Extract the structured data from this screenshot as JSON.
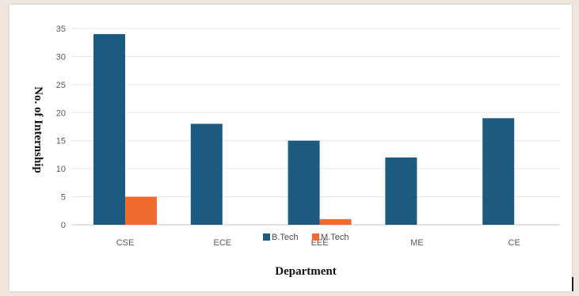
{
  "chart_data": {
    "type": "bar",
    "categories": [
      "CSE",
      "ECE",
      "EEE",
      "ME",
      "CE"
    ],
    "series": [
      {
        "name": "B.Tech",
        "color": "#1c5a7f",
        "values": [
          34,
          18,
          15,
          12,
          19
        ]
      },
      {
        "name": "M.Tech",
        "color": "#ef6b2e",
        "values": [
          5,
          0,
          1,
          0,
          0
        ]
      }
    ],
    "xlabel": "Department",
    "ylabel": "No. of Internship",
    "ylim": [
      0,
      35
    ],
    "yticks": [
      0,
      5,
      10,
      15,
      20,
      25,
      30,
      35
    ],
    "grid": true,
    "legend_position": "bottom-center"
  }
}
